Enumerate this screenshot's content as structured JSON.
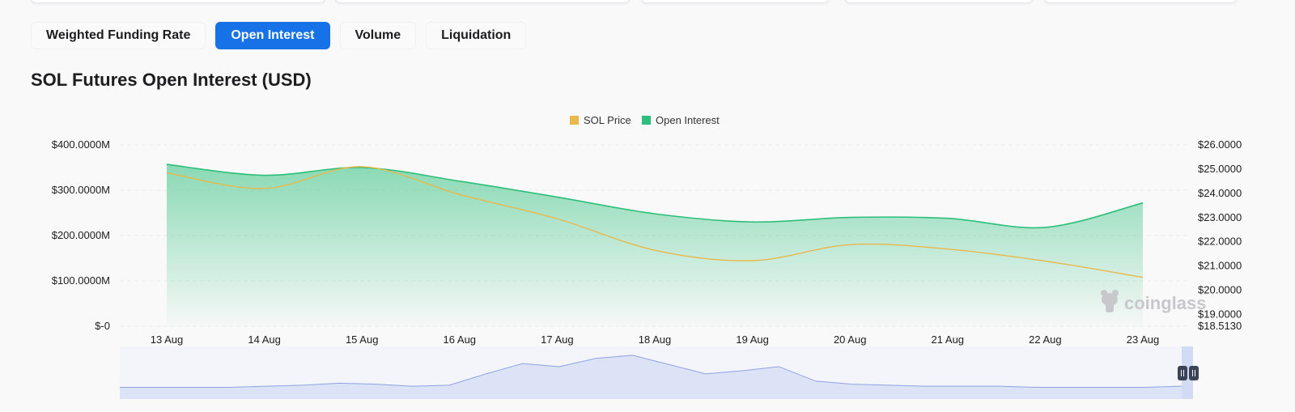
{
  "tabs": [
    {
      "label": "Weighted Funding Rate",
      "active": false
    },
    {
      "label": "Open Interest",
      "active": true
    },
    {
      "label": "Volume",
      "active": false
    },
    {
      "label": "Liquidation",
      "active": false
    }
  ],
  "watermark": "coinglass",
  "colors": {
    "accent": "#1672e6",
    "price": "#e8b84a",
    "open_interest": "#2dbf7a",
    "navigator": "#8fa3e0"
  },
  "chart_data": {
    "type": "area",
    "title": "SOL Futures Open Interest (USD)",
    "legend": {
      "position": "top-center",
      "entries": [
        "SOL Price",
        "Open Interest"
      ]
    },
    "categories": [
      "13 Aug",
      "14 Aug",
      "15 Aug",
      "16 Aug",
      "17 Aug",
      "18 Aug",
      "19 Aug",
      "20 Aug",
      "21 Aug",
      "22 Aug",
      "23 Aug"
    ],
    "y_left": {
      "ticks": [
        "$400.0000M",
        "$300.0000M",
        "$200.0000M",
        "$100.0000M",
        "$-0"
      ],
      "range": [
        0,
        400
      ]
    },
    "y_right": {
      "ticks": [
        "$26.0000",
        "$25.0000",
        "$24.0000",
        "$23.0000",
        "$22.0000",
        "$21.0000",
        "$20.0000",
        "$19.0000",
        "$18.5130"
      ],
      "range": [
        18.513,
        26
      ]
    },
    "grid": true,
    "series": [
      {
        "name": "Open Interest",
        "axis": "left",
        "values": [
          357,
          333,
          350,
          320,
          285,
          248,
          230,
          240,
          238,
          218,
          272
        ]
      },
      {
        "name": "SOL Price",
        "axis": "right",
        "values": [
          24.85,
          24.2,
          25.1,
          23.95,
          22.95,
          21.65,
          21.22,
          21.88,
          21.7,
          21.2,
          20.53
        ]
      }
    ],
    "navigator": {
      "values": [
        2,
        2,
        2,
        2,
        3,
        4,
        6,
        5,
        3,
        4,
        15,
        25,
        22,
        30,
        33,
        24,
        15,
        18,
        22,
        8,
        5,
        4,
        3,
        3,
        3,
        2,
        2,
        2,
        2,
        3
      ]
    }
  }
}
